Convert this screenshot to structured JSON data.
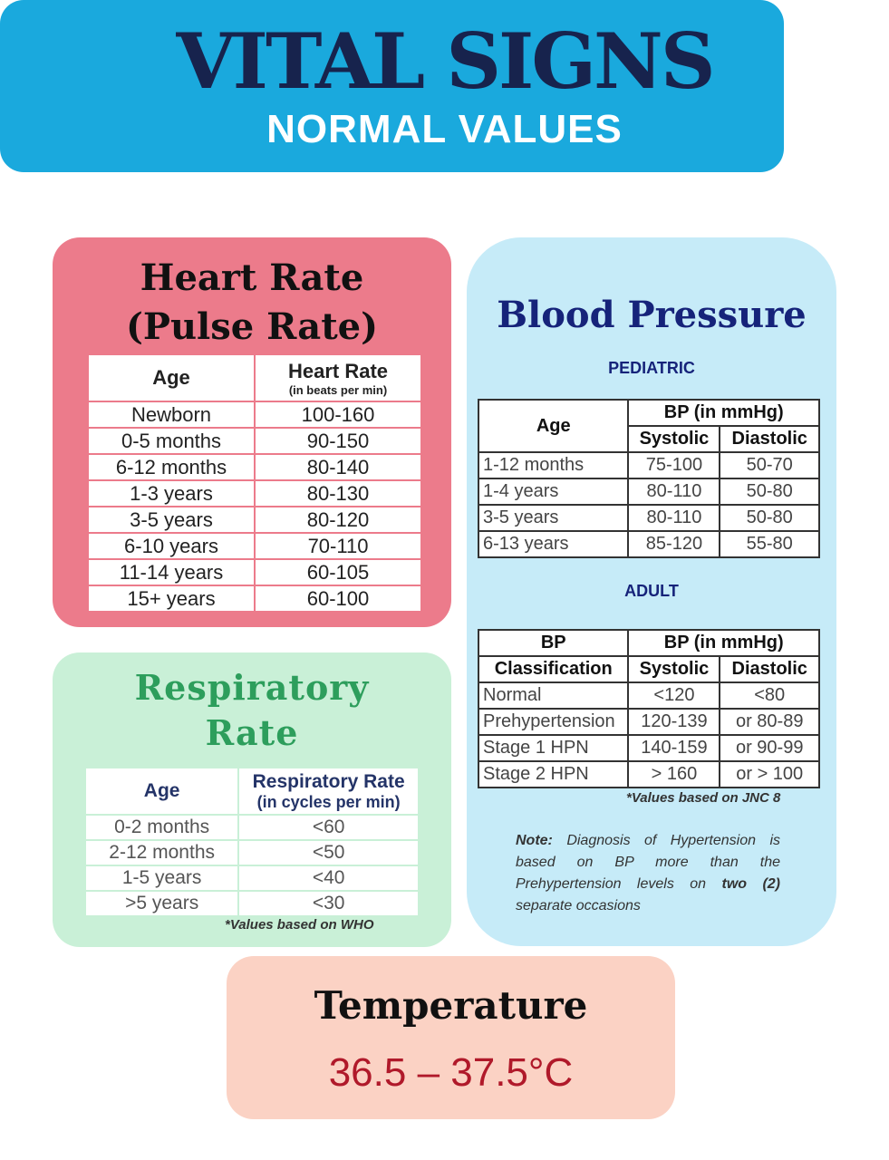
{
  "header": {
    "title": "VITAL SIGNS",
    "subtitle": "NORMAL VALUES"
  },
  "heart_rate": {
    "title_line1": "Heart Rate",
    "title_line2": "(Pulse Rate)",
    "col_age": "Age",
    "col_rate": "Heart Rate",
    "col_rate_unit": "(in beats per min)",
    "rows": [
      [
        "Newborn",
        "100-160"
      ],
      [
        "0-5 months",
        "90-150"
      ],
      [
        "6-12 months",
        "80-140"
      ],
      [
        "1-3 years",
        "80-130"
      ],
      [
        "3-5 years",
        "80-120"
      ],
      [
        "6-10 years",
        "70-110"
      ],
      [
        "11-14 years",
        "60-105"
      ],
      [
        "15+ years",
        "60-100"
      ]
    ]
  },
  "respiratory": {
    "title_line1": "Respiratory",
    "title_line2": "Rate",
    "col_age": "Age",
    "col_rate": "Respiratory Rate",
    "col_rate_unit": "(in cycles per min)",
    "rows": [
      [
        "0-2 months",
        "<60"
      ],
      [
        "2-12 months",
        "<50"
      ],
      [
        "1-5 years",
        "<40"
      ],
      [
        ">5 years",
        "<30"
      ]
    ],
    "note": "*Values based on WHO"
  },
  "blood_pressure": {
    "title": "Blood Pressure",
    "pediatric_label": "PEDIATRIC",
    "pediatric": {
      "col_age": "Age",
      "col_bp": "BP (in mmHg)",
      "col_sys": "Systolic",
      "col_dia": "Diastolic",
      "rows": [
        [
          "1-12 months",
          "75-100",
          "50-70"
        ],
        [
          "1-4 years",
          "80-110",
          "50-80"
        ],
        [
          "3-5 years",
          "80-110",
          "50-80"
        ],
        [
          "6-13 years",
          "85-120",
          "55-80"
        ]
      ]
    },
    "adult_label": "ADULT",
    "adult": {
      "col_class1": "BP",
      "col_class2": "Classification",
      "col_bp": "BP (in mmHg)",
      "col_sys": "Systolic",
      "col_dia": "Diastolic",
      "rows": [
        [
          "Normal",
          "<120",
          "<80"
        ],
        [
          "Prehypertension",
          "120-139",
          "or 80-89"
        ],
        [
          "Stage 1 HPN",
          "140-159",
          "or 90-99"
        ],
        [
          "Stage 2 HPN",
          "> 160",
          "or > 100"
        ]
      ]
    },
    "jnc_note": "*Values based on JNC 8",
    "note_label": "Note:",
    "note_text1": "Diagnosis of Hypertension is based on BP more than the Prehypertension levels on",
    "note_bold": "two (2)",
    "note_text2": "separate occasions"
  },
  "temperature": {
    "title": "Temperature",
    "value": "36.5 – 37.5°C"
  }
}
